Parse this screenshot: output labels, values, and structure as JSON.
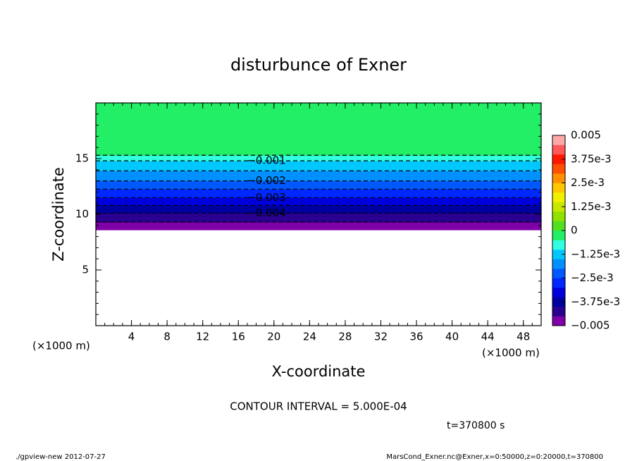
{
  "chart_data": {
    "type": "contour",
    "title": "disturbunce of Exner",
    "xlabel": "X-coordinate",
    "ylabel": "Z-coordinate",
    "x_unit": "(×1000 m)",
    "y_unit": "(×1000 m)",
    "xlim": [
      0,
      50
    ],
    "ylim": [
      0,
      20
    ],
    "xticks": [
      4,
      8,
      12,
      16,
      20,
      24,
      28,
      32,
      36,
      40,
      44,
      48
    ],
    "yticks": [
      5,
      10,
      15
    ],
    "minor_step": 1,
    "profile": {
      "z": [
        8.6,
        9.3,
        10.1,
        11.5,
        13.0,
        14.8,
        15.3,
        20
      ],
      "values": [
        -0.005,
        -0.0045,
        -0.004,
        -0.003,
        -0.002,
        -0.001,
        -0.0005,
        -0.0002
      ]
    },
    "levels": [
      -0.005,
      -0.0045,
      -0.004,
      -0.0035,
      -0.003,
      -0.0025,
      -0.002,
      -0.0015,
      -0.001,
      -0.0005,
      0,
      0.0005,
      0.001,
      0.0015,
      0.002,
      0.0025,
      0.003,
      0.0035,
      0.004,
      0.0045,
      0.005
    ],
    "colors": [
      "#8000a8",
      "#2a0090",
      "#0000a0",
      "#0000dc",
      "#0028ff",
      "#0058ff",
      "#0090ff",
      "#00c8ff",
      "#30ffe0",
      "#22ee66",
      "#50e020",
      "#90e000",
      "#c8e800",
      "#f0f000",
      "#ffc800",
      "#ff9000",
      "#ff5000",
      "#ff1800",
      "#ff5858",
      "#ffa8a8"
    ],
    "colorbar_ticks": [
      {
        "value": -0.005,
        "label": "−0.005"
      },
      {
        "value": -0.00375,
        "label": "−3.75e-3"
      },
      {
        "value": -0.0025,
        "label": "−2.5e-3"
      },
      {
        "value": -0.00125,
        "label": "−1.25e-3"
      },
      0,
      {
        "value": 0.00125,
        "label": "1.25e-3"
      },
      {
        "value": 0.0025,
        "label": "2.5e-3"
      },
      {
        "value": 0.00375,
        "label": "3.75e-3"
      },
      0.005
    ],
    "contour_labels": [
      {
        "value": -0.001,
        "label": "−0.001"
      },
      {
        "value": -0.002,
        "label": "−0.002"
      },
      {
        "value": -0.003,
        "label": "−0.003"
      },
      {
        "value": -0.004,
        "label": "−0.004"
      }
    ],
    "contour_interval": "CONTOUR INTERVAL = 5.000E-04",
    "time_label": "t=370800 s",
    "footer_left": "./gpview-new  2012-07-27",
    "footer_right": "MarsCond_Exner.nc@Exner,x=0:50000,z=0:20000,t=370800"
  }
}
